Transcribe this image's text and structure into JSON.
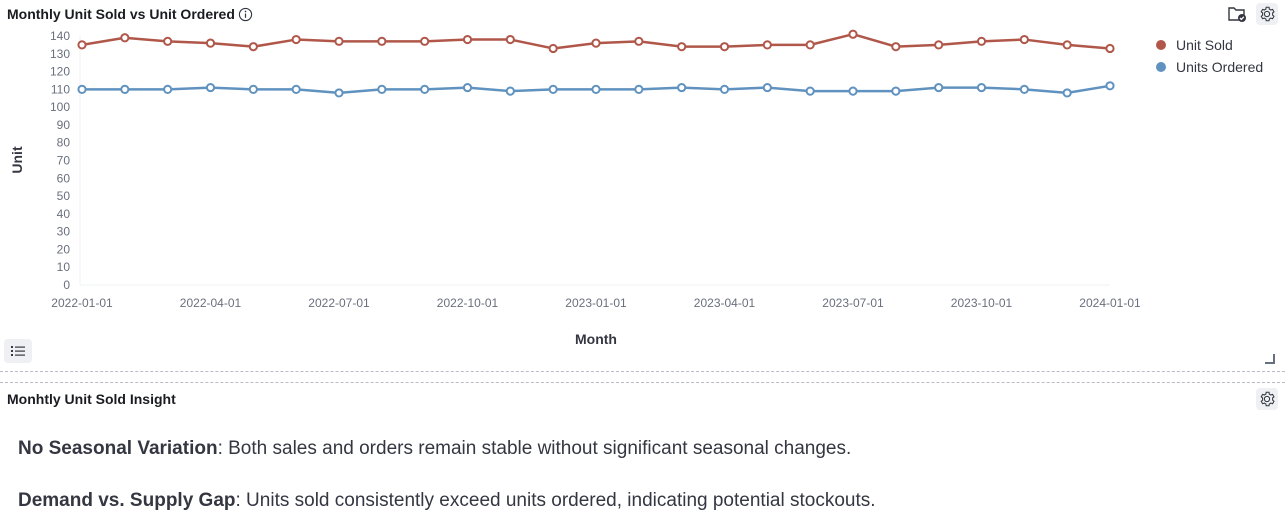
{
  "chart_panel": {
    "title": "Monthly Unit Sold vs Unit Ordered",
    "icons": {
      "info": "info-icon",
      "folder": "folder-check-icon",
      "settings": "gear-icon",
      "legend_toggle": "list-icon",
      "resize": "resize-handle-icon"
    }
  },
  "chart_data": {
    "type": "line",
    "title": "Monthly Unit Sold vs Unit Ordered",
    "xlabel": "Month",
    "ylabel": "Unit",
    "ylim": [
      0,
      140
    ],
    "yticks": [
      "0",
      "10",
      "20",
      "30",
      "40",
      "50",
      "60",
      "70",
      "80",
      "90",
      "100",
      "110",
      "120",
      "130",
      "140"
    ],
    "xticks": [
      "2022-01-01",
      "2022-04-01",
      "2022-07-01",
      "2022-10-01",
      "2023-01-01",
      "2023-04-01",
      "2023-07-01",
      "2023-10-01",
      "2024-01-01"
    ],
    "grid": false,
    "legend_position": "right",
    "x": [
      "2022-01-01",
      "2022-02-01",
      "2022-03-01",
      "2022-04-01",
      "2022-05-01",
      "2022-06-01",
      "2022-07-01",
      "2022-08-01",
      "2022-09-01",
      "2022-10-01",
      "2022-11-01",
      "2022-12-01",
      "2023-01-01",
      "2023-02-01",
      "2023-03-01",
      "2023-04-01",
      "2023-05-01",
      "2023-06-01",
      "2023-07-01",
      "2023-08-01",
      "2023-09-01",
      "2023-10-01",
      "2023-11-01",
      "2023-12-01",
      "2024-01-01"
    ],
    "series": [
      {
        "name": "Unit Sold",
        "color": "#b0574a",
        "values": [
          135,
          139,
          137,
          136,
          134,
          138,
          137,
          137,
          137,
          138,
          138,
          133,
          136,
          137,
          134,
          134,
          135,
          135,
          141,
          134,
          135,
          137,
          138,
          135,
          133
        ]
      },
      {
        "name": "Units Ordered",
        "color": "#6092c0",
        "values": [
          110,
          110,
          110,
          111,
          110,
          110,
          108,
          110,
          110,
          111,
          109,
          110,
          110,
          110,
          111,
          110,
          111,
          109,
          109,
          109,
          111,
          111,
          110,
          108,
          112
        ]
      }
    ]
  },
  "insight_panel": {
    "title": "Monhtly Unit Sold Insight",
    "items": [
      {
        "heading": "No Seasonal Variation",
        "text": ": Both sales and orders remain stable without significant seasonal changes."
      },
      {
        "heading": "Demand vs. Supply Gap",
        "text": ": Units sold consistently exceed units ordered, indicating potential stockouts."
      }
    ]
  }
}
